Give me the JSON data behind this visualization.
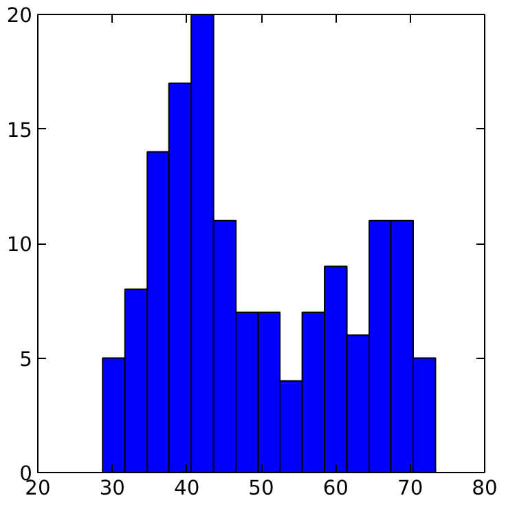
{
  "chart_data": {
    "type": "histogram",
    "bins": [
      28.7,
      31.7,
      34.7,
      37.6,
      40.6,
      43.6,
      46.6,
      49.6,
      52.5,
      55.5,
      58.5,
      61.5,
      64.5,
      67.4,
      70.4,
      73.4
    ],
    "values": [
      5,
      8,
      14,
      17,
      20,
      11,
      7,
      7,
      4,
      7,
      9,
      6,
      11,
      11,
      5
    ],
    "color": "#0000ff",
    "xlim": [
      20,
      80
    ],
    "ylim": [
      0,
      20
    ],
    "xticks": [
      20,
      30,
      40,
      50,
      60,
      70,
      80
    ],
    "yticks": [
      0,
      5,
      10,
      15,
      20
    ],
    "grid": false
  }
}
